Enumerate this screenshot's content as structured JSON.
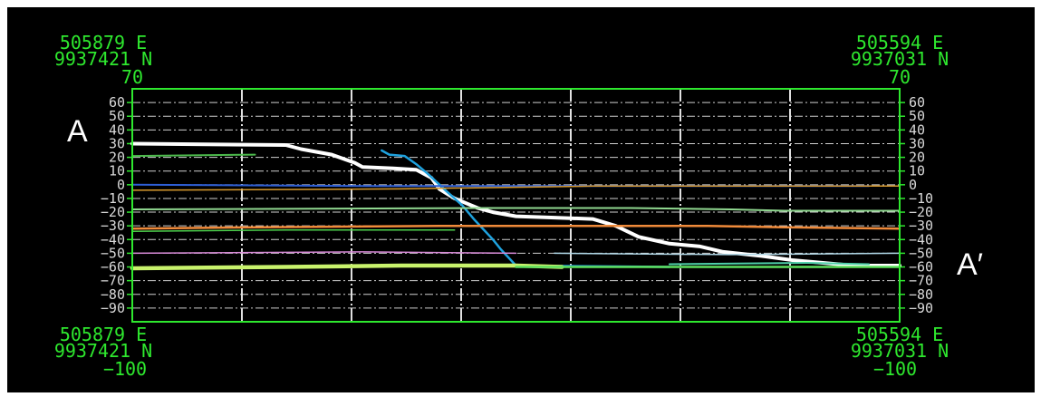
{
  "chart_data": {
    "type": "line",
    "title": "",
    "xlabel": "",
    "ylabel": "",
    "ylim": [
      -100,
      70
    ],
    "y_ticks": [
      60,
      50,
      40,
      30,
      20,
      10,
      0,
      -10,
      -20,
      -30,
      -40,
      -50,
      -60,
      -70,
      -80,
      -90
    ],
    "x_divisions": 7,
    "grid": true,
    "corners": {
      "top_left": [
        "505879 E",
        "9937421 N",
        "70"
      ],
      "top_right": [
        "505594 E",
        "9937031 N",
        "70"
      ],
      "bottom_left": [
        "505879 E",
        "9937421 N",
        "−100"
      ],
      "bottom_right": [
        "505594 E",
        "9937031 N",
        "−100"
      ]
    },
    "end_labels": {
      "left": "A",
      "right": "A′"
    },
    "series": [
      {
        "color": "#ffffff",
        "width": 4,
        "points": [
          [
            0,
            30
          ],
          [
            0.2,
            29
          ],
          [
            0.22,
            26
          ],
          [
            0.26,
            22
          ],
          [
            0.29,
            16
          ],
          [
            0.3,
            13
          ],
          [
            0.34,
            12
          ],
          [
            0.37,
            11
          ],
          [
            0.39,
            5
          ],
          [
            0.4,
            -3
          ],
          [
            0.42,
            -10
          ],
          [
            0.45,
            -17
          ],
          [
            0.47,
            -20
          ],
          [
            0.5,
            -23
          ],
          [
            0.55,
            -24
          ],
          [
            0.6,
            -25
          ],
          [
            0.63,
            -30
          ],
          [
            0.66,
            -38
          ],
          [
            0.7,
            -43
          ],
          [
            0.74,
            -45
          ],
          [
            0.77,
            -49
          ],
          [
            0.82,
            -52
          ],
          [
            0.86,
            -55
          ],
          [
            0.9,
            -57
          ],
          [
            0.94,
            -59
          ],
          [
            1.0,
            -59
          ]
        ]
      },
      {
        "color": "#1fa2de",
        "width": 2.5,
        "points": [
          [
            0.325,
            25
          ],
          [
            0.335,
            22
          ],
          [
            0.355,
            21
          ],
          [
            0.37,
            15
          ],
          [
            0.385,
            8
          ],
          [
            0.41,
            -5
          ],
          [
            0.43,
            -15
          ],
          [
            0.445,
            -25
          ],
          [
            0.47,
            -40
          ],
          [
            0.48,
            -47
          ],
          [
            0.5,
            -59
          ],
          [
            0.7,
            -60
          ]
        ]
      },
      {
        "color": "#2e5fd6",
        "width": 2,
        "points": [
          [
            0,
            0
          ],
          [
            0.32,
            -1
          ],
          [
            0.5,
            -1
          ],
          [
            0.7,
            -1
          ],
          [
            0.86,
            -1
          ],
          [
            0.96,
            -1
          ]
        ]
      },
      {
        "color": "#d89a2e",
        "width": 1.5,
        "points": [
          [
            0,
            -4
          ],
          [
            0.35,
            -3
          ],
          [
            0.6,
            -1
          ],
          [
            1.0,
            -1
          ]
        ]
      },
      {
        "color": "#4dbb4d",
        "width": 2,
        "points": [
          [
            0,
            21
          ],
          [
            0.16,
            22
          ]
        ]
      },
      {
        "color": "#90d890",
        "width": 2,
        "points": [
          [
            0,
            -18
          ],
          [
            0.45,
            -17
          ],
          [
            0.55,
            -17
          ],
          [
            0.65,
            -17
          ],
          [
            0.78,
            -18
          ],
          [
            0.85,
            -19
          ],
          [
            1.0,
            -19
          ]
        ]
      },
      {
        "color": "#f08a3a",
        "width": 2.5,
        "points": [
          [
            0,
            -32
          ],
          [
            0.16,
            -31
          ],
          [
            0.4,
            -30
          ],
          [
            0.6,
            -30
          ],
          [
            0.75,
            -30
          ],
          [
            0.85,
            -31
          ],
          [
            1.0,
            -32
          ]
        ]
      },
      {
        "color": "#4dd14d",
        "width": 1.5,
        "points": [
          [
            0,
            -34
          ],
          [
            0.2,
            -33
          ],
          [
            0.42,
            -33
          ]
        ]
      },
      {
        "color": "#d88ad8",
        "width": 1.5,
        "points": [
          [
            0,
            -50
          ],
          [
            0.3,
            -49
          ],
          [
            0.5,
            -50
          ]
        ]
      },
      {
        "color": "#b0d8e8",
        "width": 1.5,
        "points": [
          [
            0.55,
            -50
          ],
          [
            0.78,
            -51
          ],
          [
            1.0,
            -50
          ]
        ]
      },
      {
        "color": "#1f8ad8",
        "width": 1.5,
        "points": [
          [
            0.5,
            -59
          ],
          [
            0.7,
            -60
          ],
          [
            0.9,
            -60
          ]
        ]
      },
      {
        "color": "#4ed0a8",
        "width": 2,
        "points": [
          [
            0.7,
            -58
          ],
          [
            0.88,
            -57
          ],
          [
            0.96,
            -58
          ]
        ]
      },
      {
        "color": "#c8f26c",
        "width": 4.5,
        "points": [
          [
            0,
            -61
          ],
          [
            0.2,
            -60
          ],
          [
            0.35,
            -59
          ],
          [
            0.5,
            -59
          ],
          [
            0.56,
            -60
          ]
        ]
      },
      {
        "color": "#5ee05e",
        "width": 2.5,
        "points": [
          [
            0.5,
            -60
          ],
          [
            0.75,
            -60
          ],
          [
            1.0,
            -60
          ]
        ]
      }
    ]
  }
}
